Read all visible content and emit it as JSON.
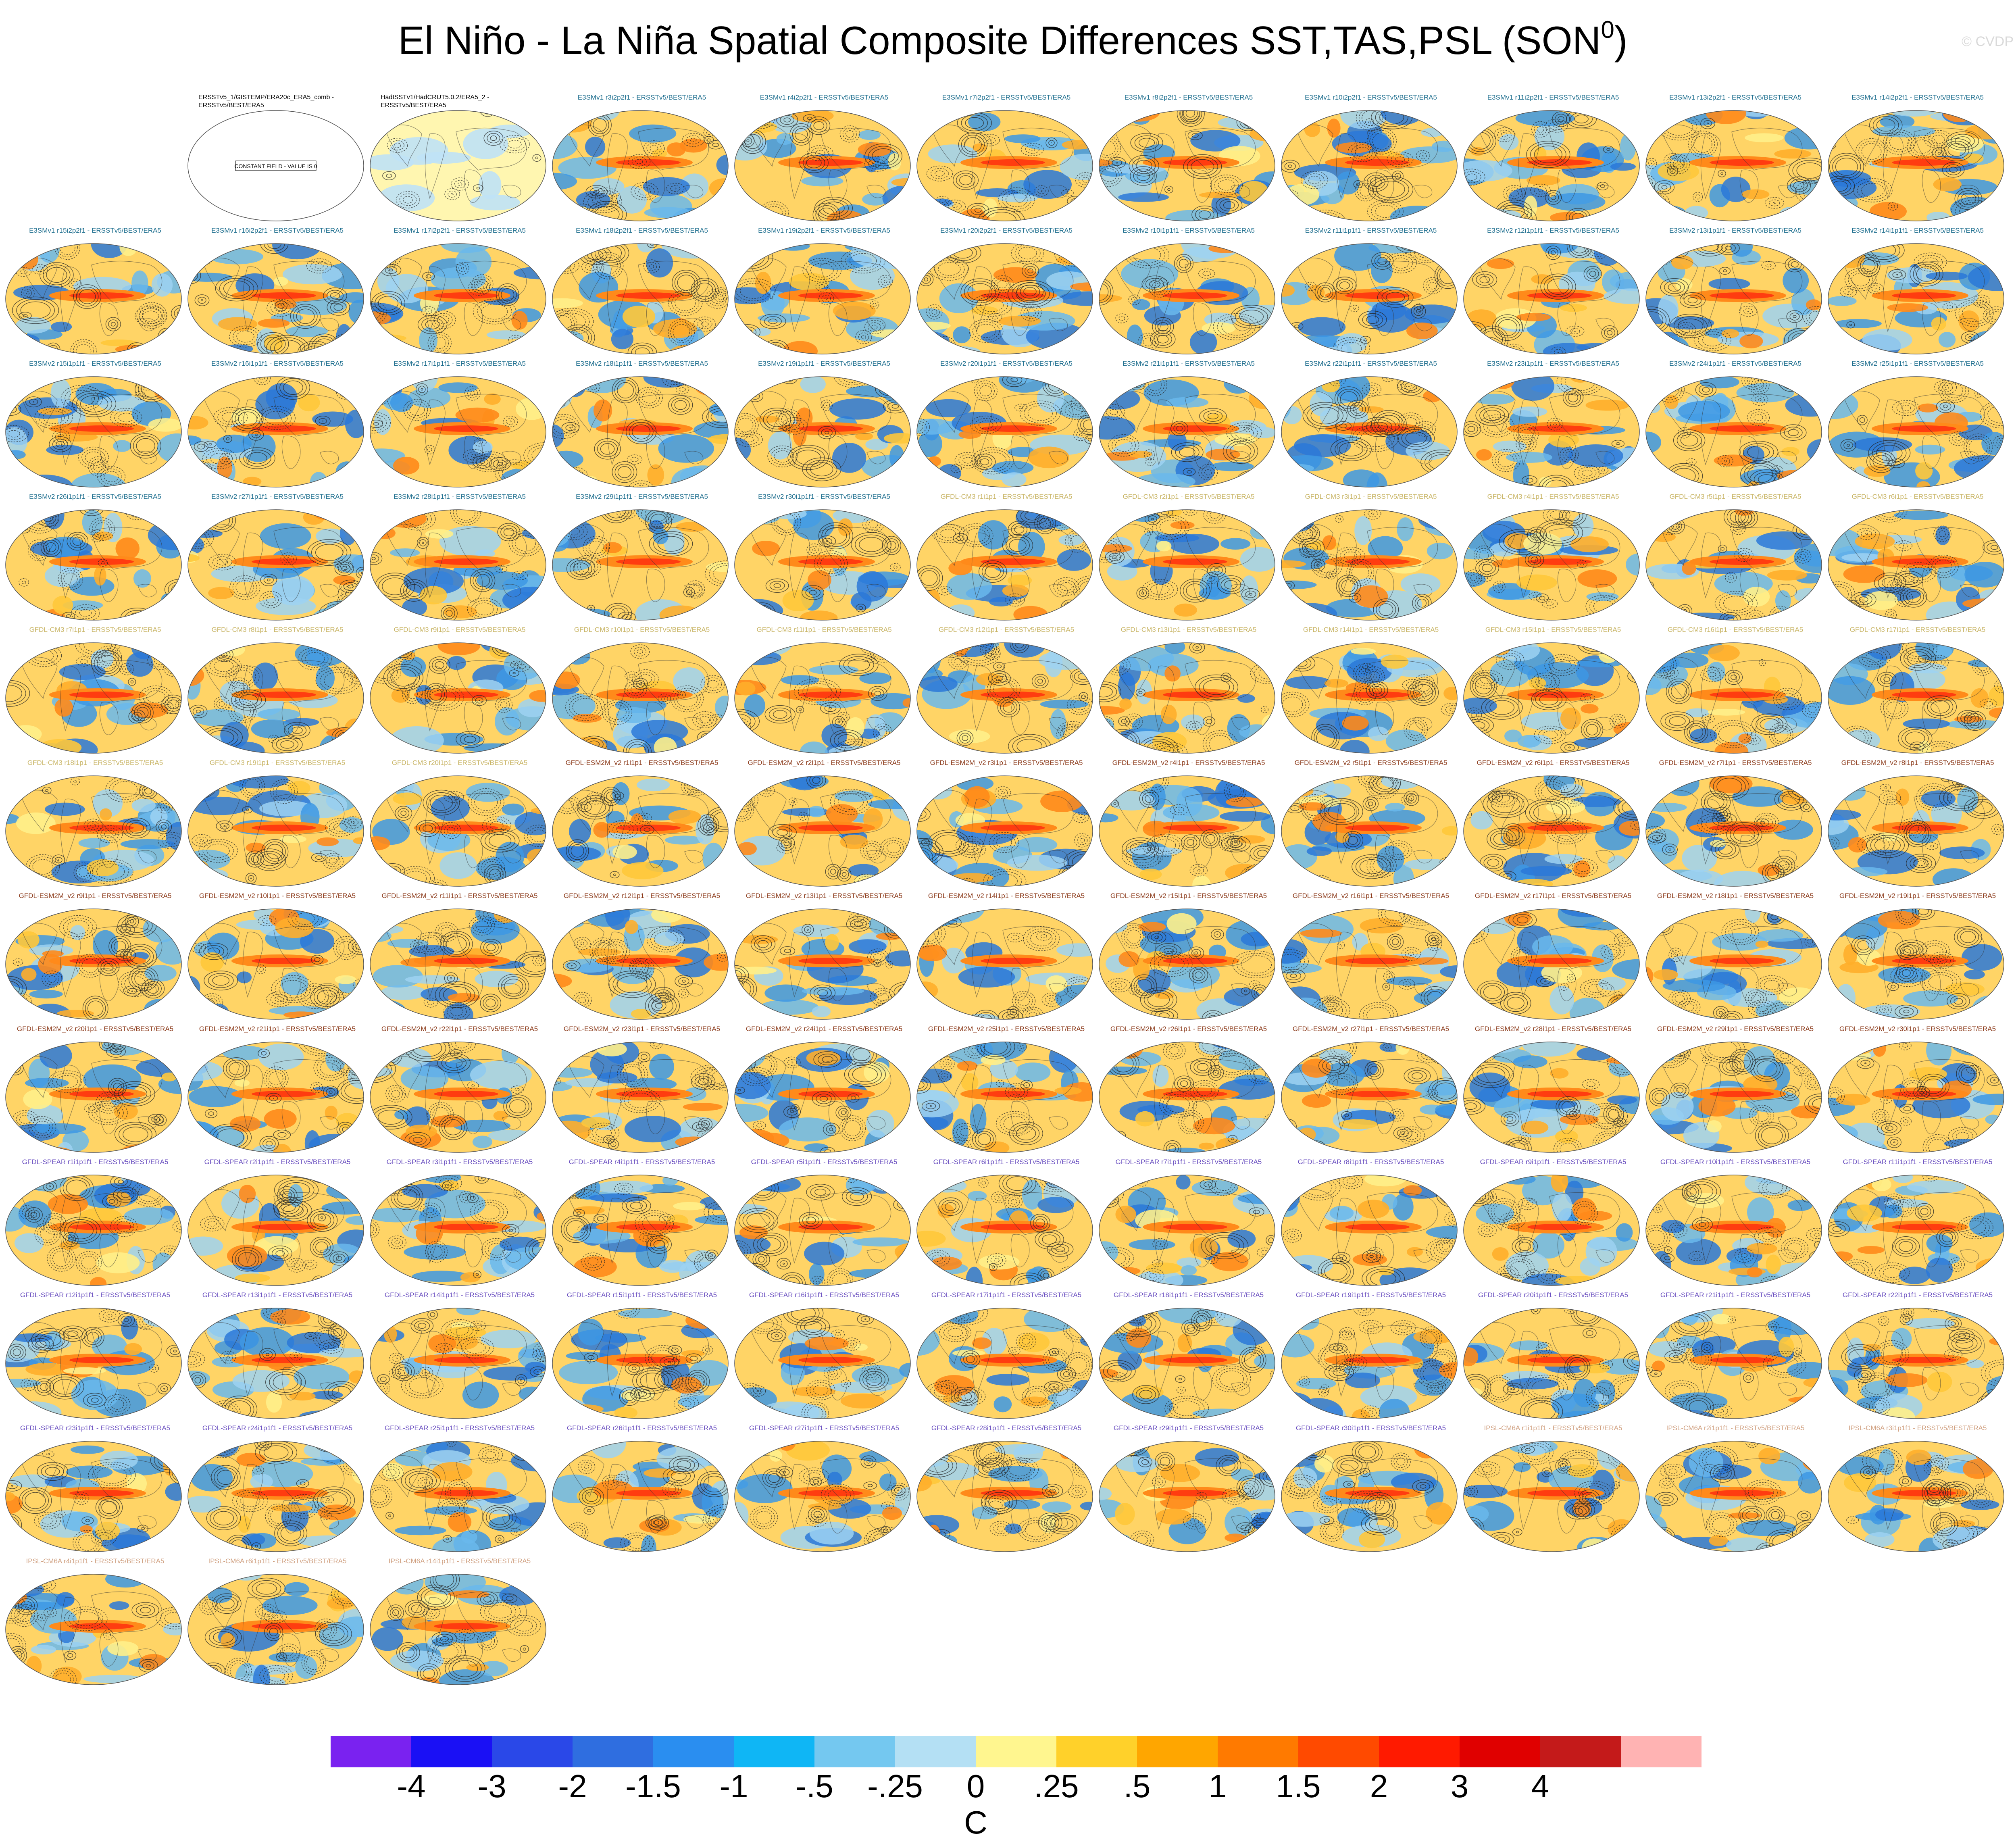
{
  "title": {
    "main": "El Niño - La Niña Spatial Composite Differences SST,TAS,PSL (SON",
    "sup": "0",
    "suffix": ")"
  },
  "credit": "© CVDP",
  "colors": {
    "E3SM": "#1f6f8f",
    "GFDL-CM3": "#c8b464",
    "GFDL-ESM2M": "#8b3a1a",
    "GFDL-SPEAR": "#6a4fc0",
    "IPSL-CM6A": "#d0a080",
    "obs": "#000000"
  },
  "panels": [
    {
      "title": "ERSSTv5_1/GISTEMP/ERA20c_ERA5_comb - ERSSTv5/BEST/ERA5",
      "group": "obs",
      "note": "CONSTANT FIELD - VALUE IS 0"
    },
    {
      "title": "HadISSTv1/HadCRUT5.0.2/ERA5_2 - ERSSTv5/BEST/ERA5",
      "group": "obs"
    },
    {
      "title": "E3SMv1 r3i2p2f1 - ERSSTv5/BEST/ERA5",
      "group": "E3SM"
    },
    {
      "title": "E3SMv1 r4i2p2f1 - ERSSTv5/BEST/ERA5",
      "group": "E3SM"
    },
    {
      "title": "E3SMv1 r7i2p2f1 - ERSSTv5/BEST/ERA5",
      "group": "E3SM"
    },
    {
      "title": "E3SMv1 r8i2p2f1 - ERSSTv5/BEST/ERA5",
      "group": "E3SM"
    },
    {
      "title": "E3SMv1 r10i2p2f1 - ERSSTv5/BEST/ERA5",
      "group": "E3SM"
    },
    {
      "title": "E3SMv1 r11i2p2f1 - ERSSTv5/BEST/ERA5",
      "group": "E3SM"
    },
    {
      "title": "E3SMv1 r13i2p2f1 - ERSSTv5/BEST/ERA5",
      "group": "E3SM"
    },
    {
      "title": "E3SMv1 r14i2p2f1 - ERSSTv5/BEST/ERA5",
      "group": "E3SM"
    },
    {
      "title": "E3SMv1 r15i2p2f1 - ERSSTv5/BEST/ERA5",
      "group": "E3SM"
    },
    {
      "title": "E3SMv1 r16i2p2f1 - ERSSTv5/BEST/ERA5",
      "group": "E3SM"
    },
    {
      "title": "E3SMv1 r17i2p2f1 - ERSSTv5/BEST/ERA5",
      "group": "E3SM"
    },
    {
      "title": "E3SMv1 r18i2p2f1 - ERSSTv5/BEST/ERA5",
      "group": "E3SM"
    },
    {
      "title": "E3SMv1 r19i2p2f1 - ERSSTv5/BEST/ERA5",
      "group": "E3SM"
    },
    {
      "title": "E3SMv1 r20i2p2f1 - ERSSTv5/BEST/ERA5",
      "group": "E3SM"
    },
    {
      "title": "E3SMv2 r10i1p1f1 - ERSSTv5/BEST/ERA5",
      "group": "E3SM"
    },
    {
      "title": "E3SMv2 r11i1p1f1 - ERSSTv5/BEST/ERA5",
      "group": "E3SM"
    },
    {
      "title": "E3SMv2 r12i1p1f1 - ERSSTv5/BEST/ERA5",
      "group": "E3SM"
    },
    {
      "title": "E3SMv2 r13i1p1f1 - ERSSTv5/BEST/ERA5",
      "group": "E3SM"
    },
    {
      "title": "E3SMv2 r14i1p1f1 - ERSSTv5/BEST/ERA5",
      "group": "E3SM"
    },
    {
      "title": "E3SMv2 r15i1p1f1 - ERSSTv5/BEST/ERA5",
      "group": "E3SM"
    },
    {
      "title": "E3SMv2 r16i1p1f1 - ERSSTv5/BEST/ERA5",
      "group": "E3SM"
    },
    {
      "title": "E3SMv2 r17i1p1f1 - ERSSTv5/BEST/ERA5",
      "group": "E3SM"
    },
    {
      "title": "E3SMv2 r18i1p1f1 - ERSSTv5/BEST/ERA5",
      "group": "E3SM"
    },
    {
      "title": "E3SMv2 r19i1p1f1 - ERSSTv5/BEST/ERA5",
      "group": "E3SM"
    },
    {
      "title": "E3SMv2 r20i1p1f1 - ERSSTv5/BEST/ERA5",
      "group": "E3SM"
    },
    {
      "title": "E3SMv2 r21i1p1f1 - ERSSTv5/BEST/ERA5",
      "group": "E3SM"
    },
    {
      "title": "E3SMv2 r22i1p1f1 - ERSSTv5/BEST/ERA5",
      "group": "E3SM"
    },
    {
      "title": "E3SMv2 r23i1p1f1 - ERSSTv5/BEST/ERA5",
      "group": "E3SM"
    },
    {
      "title": "E3SMv2 r24i1p1f1 - ERSSTv5/BEST/ERA5",
      "group": "E3SM"
    },
    {
      "title": "E3SMv2 r25i1p1f1 - ERSSTv5/BEST/ERA5",
      "group": "E3SM"
    },
    {
      "title": "E3SMv2 r26i1p1f1 - ERSSTv5/BEST/ERA5",
      "group": "E3SM"
    },
    {
      "title": "E3SMv2 r27i1p1f1 - ERSSTv5/BEST/ERA5",
      "group": "E3SM"
    },
    {
      "title": "E3SMv2 r28i1p1f1 - ERSSTv5/BEST/ERA5",
      "group": "E3SM"
    },
    {
      "title": "E3SMv2 r29i1p1f1 - ERSSTv5/BEST/ERA5",
      "group": "E3SM"
    },
    {
      "title": "E3SMv2 r30i1p1f1 - ERSSTv5/BEST/ERA5",
      "group": "E3SM"
    },
    {
      "title": "GFDL-CM3 r1i1p1 - ERSSTv5/BEST/ERA5",
      "group": "GFDL-CM3"
    },
    {
      "title": "GFDL-CM3 r2i1p1 - ERSSTv5/BEST/ERA5",
      "group": "GFDL-CM3"
    },
    {
      "title": "GFDL-CM3 r3i1p1 - ERSSTv5/BEST/ERA5",
      "group": "GFDL-CM3"
    },
    {
      "title": "GFDL-CM3 r4i1p1 - ERSSTv5/BEST/ERA5",
      "group": "GFDL-CM3"
    },
    {
      "title": "GFDL-CM3 r5i1p1 - ERSSTv5/BEST/ERA5",
      "group": "GFDL-CM3"
    },
    {
      "title": "GFDL-CM3 r6i1p1 - ERSSTv5/BEST/ERA5",
      "group": "GFDL-CM3"
    },
    {
      "title": "GFDL-CM3 r7i1p1 - ERSSTv5/BEST/ERA5",
      "group": "GFDL-CM3"
    },
    {
      "title": "GFDL-CM3 r8i1p1 - ERSSTv5/BEST/ERA5",
      "group": "GFDL-CM3"
    },
    {
      "title": "GFDL-CM3 r9i1p1 - ERSSTv5/BEST/ERA5",
      "group": "GFDL-CM3"
    },
    {
      "title": "GFDL-CM3 r10i1p1 - ERSSTv5/BEST/ERA5",
      "group": "GFDL-CM3"
    },
    {
      "title": "GFDL-CM3 r11i1p1 - ERSSTv5/BEST/ERA5",
      "group": "GFDL-CM3"
    },
    {
      "title": "GFDL-CM3 r12i1p1 - ERSSTv5/BEST/ERA5",
      "group": "GFDL-CM3"
    },
    {
      "title": "GFDL-CM3 r13i1p1 - ERSSTv5/BEST/ERA5",
      "group": "GFDL-CM3"
    },
    {
      "title": "GFDL-CM3 r14i1p1 - ERSSTv5/BEST/ERA5",
      "group": "GFDL-CM3"
    },
    {
      "title": "GFDL-CM3 r15i1p1 - ERSSTv5/BEST/ERA5",
      "group": "GFDL-CM3"
    },
    {
      "title": "GFDL-CM3 r16i1p1 - ERSSTv5/BEST/ERA5",
      "group": "GFDL-CM3"
    },
    {
      "title": "GFDL-CM3 r17i1p1 - ERSSTv5/BEST/ERA5",
      "group": "GFDL-CM3"
    },
    {
      "title": "GFDL-CM3 r18i1p1 - ERSSTv5/BEST/ERA5",
      "group": "GFDL-CM3"
    },
    {
      "title": "GFDL-CM3 r19i1p1 - ERSSTv5/BEST/ERA5",
      "group": "GFDL-CM3"
    },
    {
      "title": "GFDL-CM3 r20i1p1 - ERSSTv5/BEST/ERA5",
      "group": "GFDL-CM3"
    },
    {
      "title": "GFDL-ESM2M_v2 r1i1p1 - ERSSTv5/BEST/ERA5",
      "group": "GFDL-ESM2M"
    },
    {
      "title": "GFDL-ESM2M_v2 r2i1p1 - ERSSTv5/BEST/ERA5",
      "group": "GFDL-ESM2M"
    },
    {
      "title": "GFDL-ESM2M_v2 r3i1p1 - ERSSTv5/BEST/ERA5",
      "group": "GFDL-ESM2M"
    },
    {
      "title": "GFDL-ESM2M_v2 r4i1p1 - ERSSTv5/BEST/ERA5",
      "group": "GFDL-ESM2M"
    },
    {
      "title": "GFDL-ESM2M_v2 r5i1p1 - ERSSTv5/BEST/ERA5",
      "group": "GFDL-ESM2M"
    },
    {
      "title": "GFDL-ESM2M_v2 r6i1p1 - ERSSTv5/BEST/ERA5",
      "group": "GFDL-ESM2M"
    },
    {
      "title": "GFDL-ESM2M_v2 r7i1p1 - ERSSTv5/BEST/ERA5",
      "group": "GFDL-ESM2M"
    },
    {
      "title": "GFDL-ESM2M_v2 r8i1p1 - ERSSTv5/BEST/ERA5",
      "group": "GFDL-ESM2M"
    },
    {
      "title": "GFDL-ESM2M_v2 r9i1p1 - ERSSTv5/BEST/ERA5",
      "group": "GFDL-ESM2M"
    },
    {
      "title": "GFDL-ESM2M_v2 r10i1p1 - ERSSTv5/BEST/ERA5",
      "group": "GFDL-ESM2M"
    },
    {
      "title": "GFDL-ESM2M_v2 r11i1p1 - ERSSTv5/BEST/ERA5",
      "group": "GFDL-ESM2M"
    },
    {
      "title": "GFDL-ESM2M_v2 r12i1p1 - ERSSTv5/BEST/ERA5",
      "group": "GFDL-ESM2M"
    },
    {
      "title": "GFDL-ESM2M_v2 r13i1p1 - ERSSTv5/BEST/ERA5",
      "group": "GFDL-ESM2M"
    },
    {
      "title": "GFDL-ESM2M_v2 r14i1p1 - ERSSTv5/BEST/ERA5",
      "group": "GFDL-ESM2M"
    },
    {
      "title": "GFDL-ESM2M_v2 r15i1p1 - ERSSTv5/BEST/ERA5",
      "group": "GFDL-ESM2M"
    },
    {
      "title": "GFDL-ESM2M_v2 r16i1p1 - ERSSTv5/BEST/ERA5",
      "group": "GFDL-ESM2M"
    },
    {
      "title": "GFDL-ESM2M_v2 r17i1p1 - ERSSTv5/BEST/ERA5",
      "group": "GFDL-ESM2M"
    },
    {
      "title": "GFDL-ESM2M_v2 r18i1p1 - ERSSTv5/BEST/ERA5",
      "group": "GFDL-ESM2M"
    },
    {
      "title": "GFDL-ESM2M_v2 r19i1p1 - ERSSTv5/BEST/ERA5",
      "group": "GFDL-ESM2M"
    },
    {
      "title": "GFDL-ESM2M_v2 r20i1p1 - ERSSTv5/BEST/ERA5",
      "group": "GFDL-ESM2M"
    },
    {
      "title": "GFDL-ESM2M_v2 r21i1p1 - ERSSTv5/BEST/ERA5",
      "group": "GFDL-ESM2M"
    },
    {
      "title": "GFDL-ESM2M_v2 r22i1p1 - ERSSTv5/BEST/ERA5",
      "group": "GFDL-ESM2M"
    },
    {
      "title": "GFDL-ESM2M_v2 r23i1p1 - ERSSTv5/BEST/ERA5",
      "group": "GFDL-ESM2M"
    },
    {
      "title": "GFDL-ESM2M_v2 r24i1p1 - ERSSTv5/BEST/ERA5",
      "group": "GFDL-ESM2M"
    },
    {
      "title": "GFDL-ESM2M_v2 r25i1p1 - ERSSTv5/BEST/ERA5",
      "group": "GFDL-ESM2M"
    },
    {
      "title": "GFDL-ESM2M_v2 r26i1p1 - ERSSTv5/BEST/ERA5",
      "group": "GFDL-ESM2M"
    },
    {
      "title": "GFDL-ESM2M_v2 r27i1p1 - ERSSTv5/BEST/ERA5",
      "group": "GFDL-ESM2M"
    },
    {
      "title": "GFDL-ESM2M_v2 r28i1p1 - ERSSTv5/BEST/ERA5",
      "group": "GFDL-ESM2M"
    },
    {
      "title": "GFDL-ESM2M_v2 r29i1p1 - ERSSTv5/BEST/ERA5",
      "group": "GFDL-ESM2M"
    },
    {
      "title": "GFDL-ESM2M_v2 r30i1p1 - ERSSTv5/BEST/ERA5",
      "group": "GFDL-ESM2M"
    },
    {
      "title": "GFDL-SPEAR r1i1p1f1 - ERSSTv5/BEST/ERA5",
      "group": "GFDL-SPEAR"
    },
    {
      "title": "GFDL-SPEAR r2i1p1f1 - ERSSTv5/BEST/ERA5",
      "group": "GFDL-SPEAR"
    },
    {
      "title": "GFDL-SPEAR r3i1p1f1 - ERSSTv5/BEST/ERA5",
      "group": "GFDL-SPEAR"
    },
    {
      "title": "GFDL-SPEAR r4i1p1f1 - ERSSTv5/BEST/ERA5",
      "group": "GFDL-SPEAR"
    },
    {
      "title": "GFDL-SPEAR r5i1p1f1 - ERSSTv5/BEST/ERA5",
      "group": "GFDL-SPEAR"
    },
    {
      "title": "GFDL-SPEAR r6i1p1f1 - ERSSTv5/BEST/ERA5",
      "group": "GFDL-SPEAR"
    },
    {
      "title": "GFDL-SPEAR r7i1p1f1 - ERSSTv5/BEST/ERA5",
      "group": "GFDL-SPEAR"
    },
    {
      "title": "GFDL-SPEAR r8i1p1f1 - ERSSTv5/BEST/ERA5",
      "group": "GFDL-SPEAR"
    },
    {
      "title": "GFDL-SPEAR r9i1p1f1 - ERSSTv5/BEST/ERA5",
      "group": "GFDL-SPEAR"
    },
    {
      "title": "GFDL-SPEAR r10i1p1f1 - ERSSTv5/BEST/ERA5",
      "group": "GFDL-SPEAR"
    },
    {
      "title": "GFDL-SPEAR r11i1p1f1 - ERSSTv5/BEST/ERA5",
      "group": "GFDL-SPEAR"
    },
    {
      "title": "GFDL-SPEAR r12i1p1f1 - ERSSTv5/BEST/ERA5",
      "group": "GFDL-SPEAR"
    },
    {
      "title": "GFDL-SPEAR r13i1p1f1 - ERSSTv5/BEST/ERA5",
      "group": "GFDL-SPEAR"
    },
    {
      "title": "GFDL-SPEAR r14i1p1f1 - ERSSTv5/BEST/ERA5",
      "group": "GFDL-SPEAR"
    },
    {
      "title": "GFDL-SPEAR r15i1p1f1 - ERSSTv5/BEST/ERA5",
      "group": "GFDL-SPEAR"
    },
    {
      "title": "GFDL-SPEAR r16i1p1f1 - ERSSTv5/BEST/ERA5",
      "group": "GFDL-SPEAR"
    },
    {
      "title": "GFDL-SPEAR r17i1p1f1 - ERSSTv5/BEST/ERA5",
      "group": "GFDL-SPEAR"
    },
    {
      "title": "GFDL-SPEAR r18i1p1f1 - ERSSTv5/BEST/ERA5",
      "group": "GFDL-SPEAR"
    },
    {
      "title": "GFDL-SPEAR r19i1p1f1 - ERSSTv5/BEST/ERA5",
      "group": "GFDL-SPEAR"
    },
    {
      "title": "GFDL-SPEAR r20i1p1f1 - ERSSTv5/BEST/ERA5",
      "group": "GFDL-SPEAR"
    },
    {
      "title": "GFDL-SPEAR r21i1p1f1 - ERSSTv5/BEST/ERA5",
      "group": "GFDL-SPEAR"
    },
    {
      "title": "GFDL-SPEAR r22i1p1f1 - ERSSTv5/BEST/ERA5",
      "group": "GFDL-SPEAR"
    },
    {
      "title": "GFDL-SPEAR r23i1p1f1 - ERSSTv5/BEST/ERA5",
      "group": "GFDL-SPEAR"
    },
    {
      "title": "GFDL-SPEAR r24i1p1f1 - ERSSTv5/BEST/ERA5",
      "group": "GFDL-SPEAR"
    },
    {
      "title": "GFDL-SPEAR r25i1p1f1 - ERSSTv5/BEST/ERA5",
      "group": "GFDL-SPEAR"
    },
    {
      "title": "GFDL-SPEAR r26i1p1f1 - ERSSTv5/BEST/ERA5",
      "group": "GFDL-SPEAR"
    },
    {
      "title": "GFDL-SPEAR r27i1p1f1 - ERSSTv5/BEST/ERA5",
      "group": "GFDL-SPEAR"
    },
    {
      "title": "GFDL-SPEAR r28i1p1f1 - ERSSTv5/BEST/ERA5",
      "group": "GFDL-SPEAR"
    },
    {
      "title": "GFDL-SPEAR r29i1p1f1 - ERSSTv5/BEST/ERA5",
      "group": "GFDL-SPEAR"
    },
    {
      "title": "GFDL-SPEAR r30i1p1f1 - ERSSTv5/BEST/ERA5",
      "group": "GFDL-SPEAR"
    },
    {
      "title": "IPSL-CM6A r1i1p1f1 - ERSSTv5/BEST/ERA5",
      "group": "IPSL-CM6A"
    },
    {
      "title": "IPSL-CM6A r2i1p1f1 - ERSSTv5/BEST/ERA5",
      "group": "IPSL-CM6A"
    },
    {
      "title": "IPSL-CM6A r3i1p1f1 - ERSSTv5/BEST/ERA5",
      "group": "IPSL-CM6A"
    },
    {
      "title": "IPSL-CM6A r4i1p1f1 - ERSSTv5/BEST/ERA5",
      "group": "IPSL-CM6A"
    },
    {
      "title": "IPSL-CM6A r6i1p1f1 - ERSSTv5/BEST/ERA5",
      "group": "IPSL-CM6A"
    },
    {
      "title": "IPSL-CM6A r14i1p1f1 - ERSSTv5/BEST/ERA5",
      "group": "IPSL-CM6A"
    }
  ],
  "colorbar": {
    "colors": [
      "#7a22f0",
      "#1a10f5",
      "#2a48e8",
      "#2f6ee0",
      "#2a8ef0",
      "#0fb6f5",
      "#74c8f0",
      "#b4e0f4",
      "#fff68f",
      "#ffd12a",
      "#ffa600",
      "#ff7a00",
      "#ff4a00",
      "#ff1a00",
      "#e00000",
      "#c41a1a",
      "#ffb3b3"
    ],
    "labels": [
      "-4",
      "-3",
      "-2",
      "-1.5",
      "-1",
      "-.5",
      "-.25",
      "0",
      ".25",
      ".5",
      "1",
      "1.5",
      "2",
      "3",
      "4"
    ],
    "unit": "C"
  }
}
